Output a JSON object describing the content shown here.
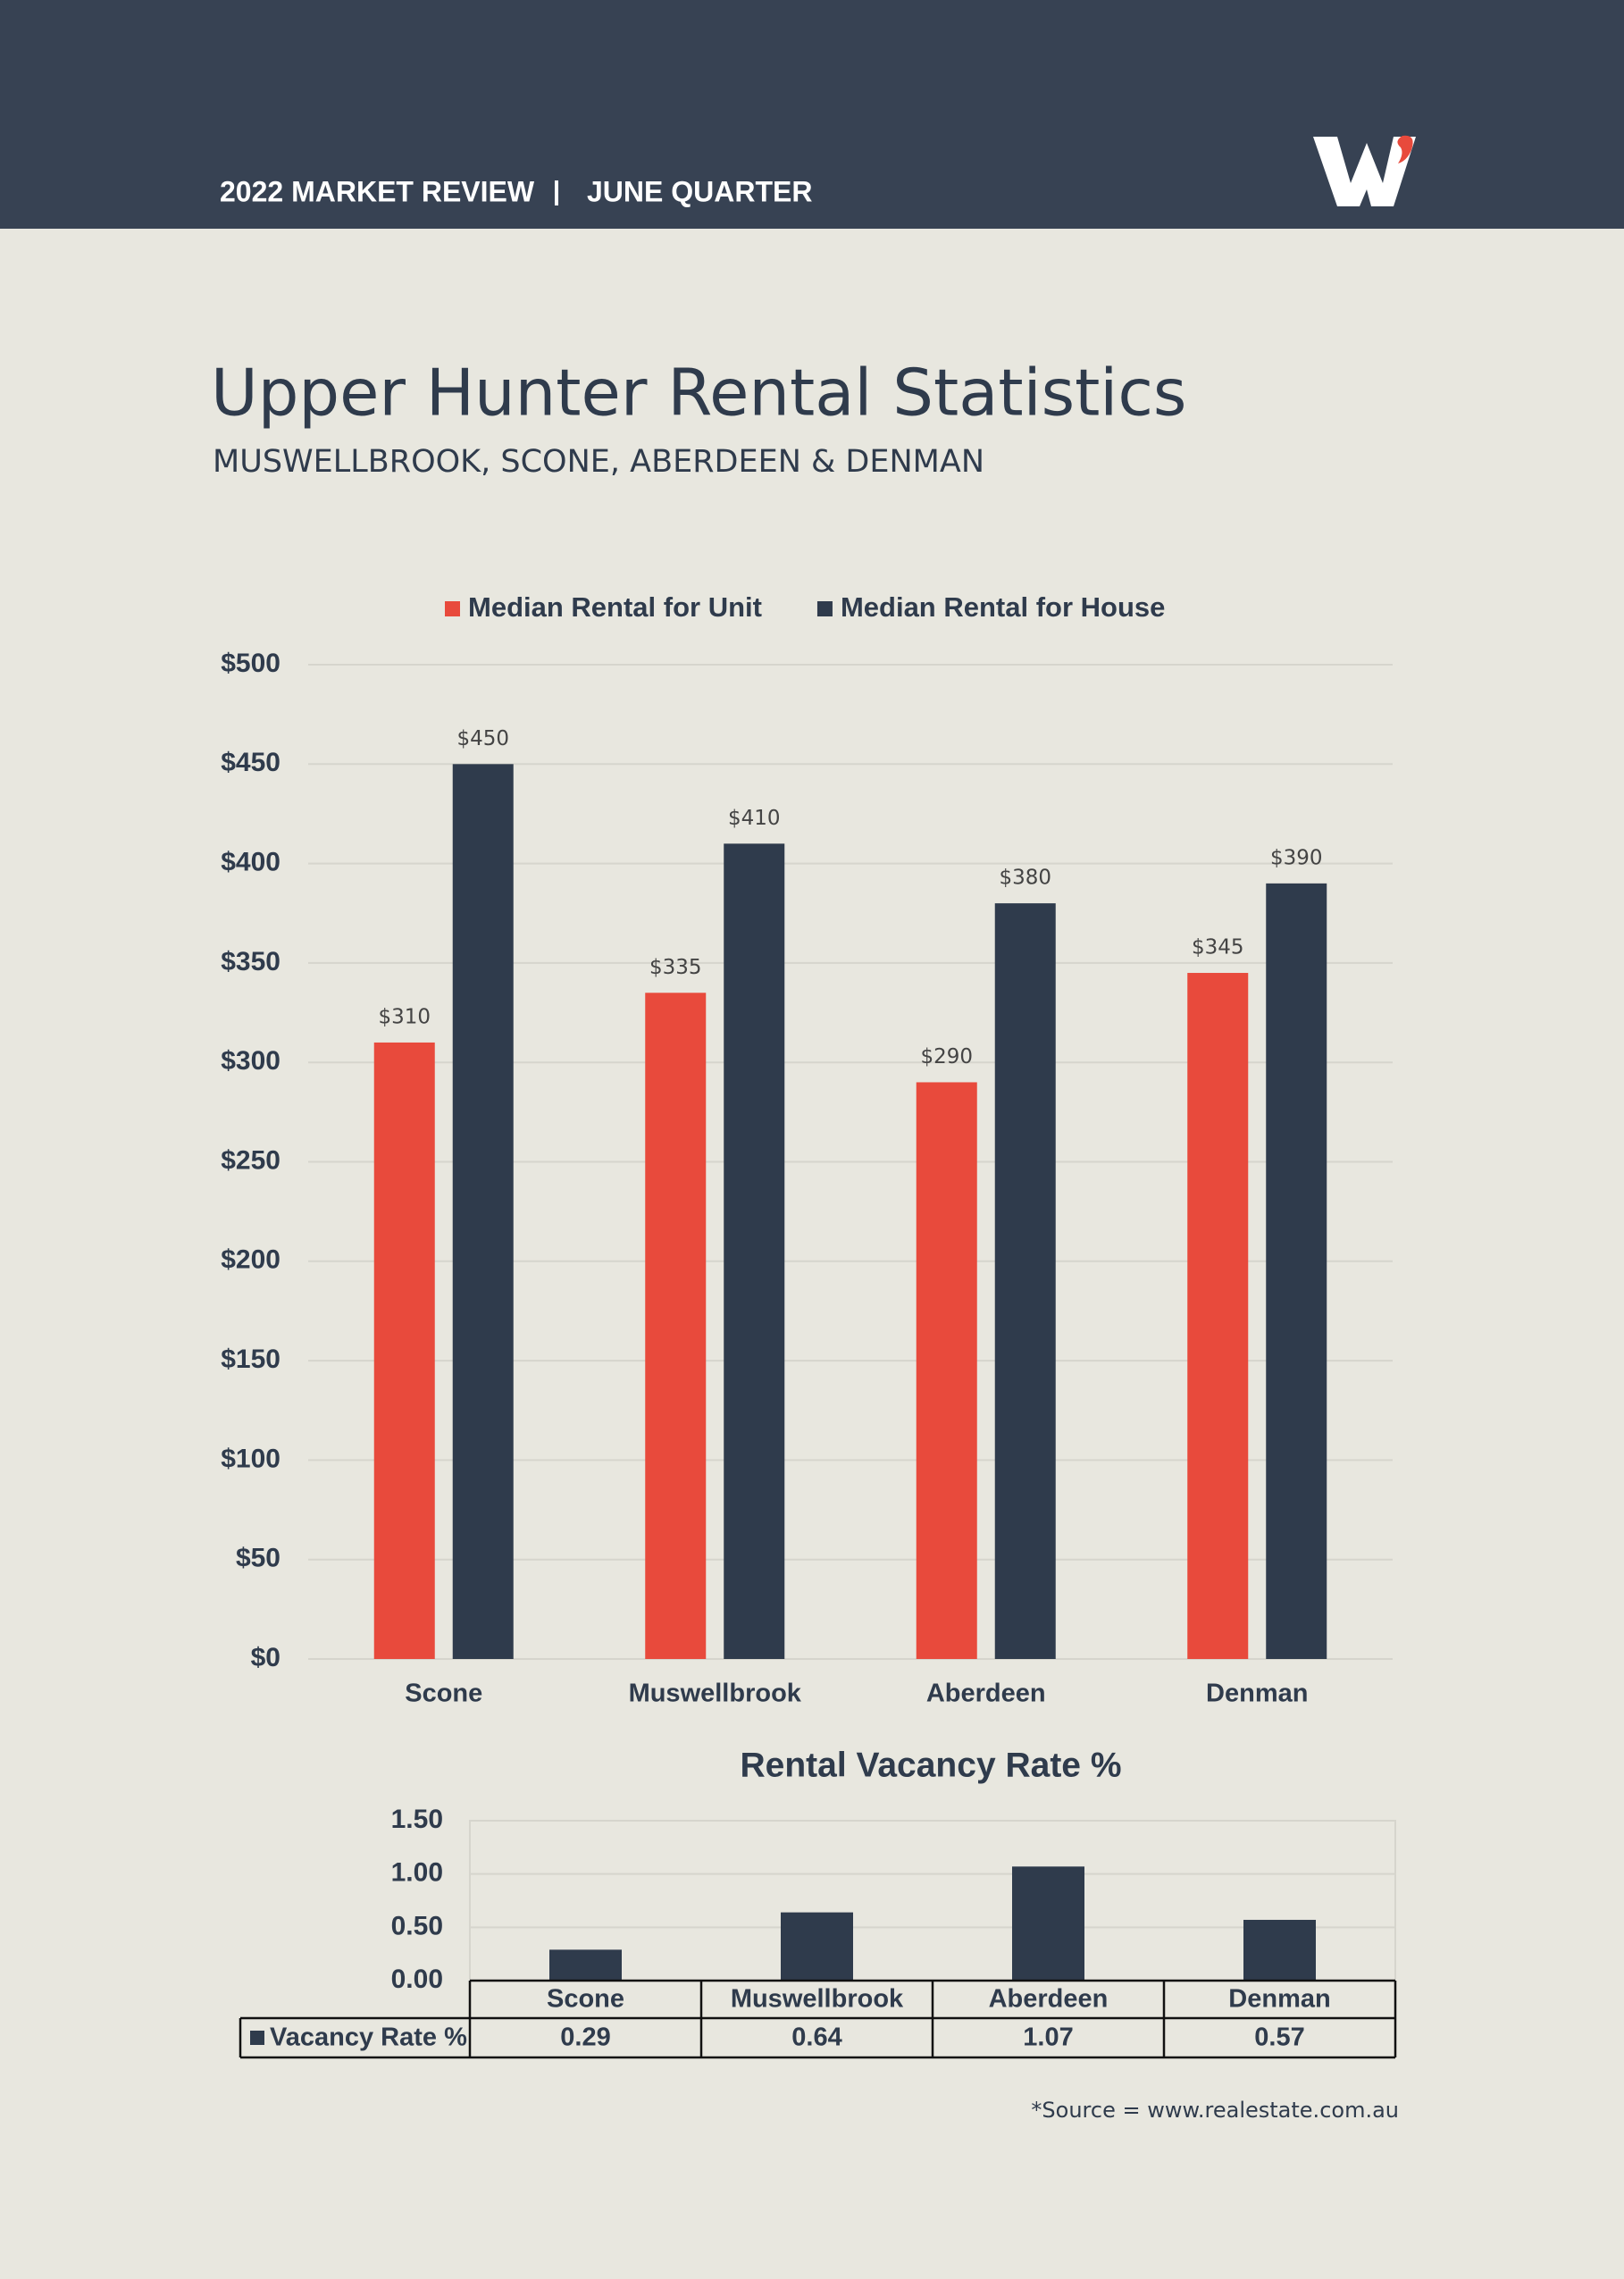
{
  "header": {
    "left": "2022 MARKET REVIEW",
    "right": "JUNE QUARTER"
  },
  "title": "Upper Hunter Rental Statistics",
  "subtitle": "MUSWELLBROOK, SCONE, ABERDEEN & DENMAN",
  "source": "*Source = www.realestate.com.au",
  "chart_data": [
    {
      "type": "bar",
      "categories": [
        "Scone",
        "Muswellbrook",
        "Aberdeen",
        "Denman"
      ],
      "series": [
        {
          "name": "Median Rental for Unit",
          "color": "#e84a3c",
          "values": [
            310,
            335,
            290,
            345
          ],
          "value_labels": [
            "$310",
            "$335",
            "$290",
            "$345"
          ]
        },
        {
          "name": "Median Rental for House",
          "color": "#2f3b4c",
          "values": [
            450,
            410,
            380,
            390
          ],
          "value_labels": [
            "$450",
            "$410",
            "$380",
            "$390"
          ]
        }
      ],
      "ylim": [
        0,
        500
      ],
      "yticks": [
        {
          "value": 0,
          "label": "$0"
        },
        {
          "value": 50,
          "label": "$50"
        },
        {
          "value": 100,
          "label": "$100"
        },
        {
          "value": 150,
          "label": "$150"
        },
        {
          "value": 200,
          "label": "$200"
        },
        {
          "value": 250,
          "label": "$250"
        },
        {
          "value": 300,
          "label": "$300"
        },
        {
          "value": 350,
          "label": "$350"
        },
        {
          "value": 400,
          "label": "$400"
        },
        {
          "value": 450,
          "label": "$450"
        },
        {
          "value": 500,
          "label": "$500"
        }
      ],
      "grid": true,
      "legend": "top"
    },
    {
      "type": "bar",
      "title": "Rental Vacancy Rate %",
      "categories": [
        "Scone",
        "Muswellbrook",
        "Aberdeen",
        "Denman"
      ],
      "series": [
        {
          "name": "Vacancy Rate %",
          "color": "#2f3b4c",
          "values": [
            0.29,
            0.64,
            1.07,
            0.57
          ]
        }
      ],
      "ylim": [
        0,
        1.5
      ],
      "yticks": [
        {
          "value": 0,
          "label": "0.00"
        },
        {
          "value": 0.5,
          "label": "0.50"
        },
        {
          "value": 1,
          "label": "1.00"
        },
        {
          "value": 1.5,
          "label": "1.50"
        }
      ],
      "grid": true,
      "data_table": true
    }
  ]
}
